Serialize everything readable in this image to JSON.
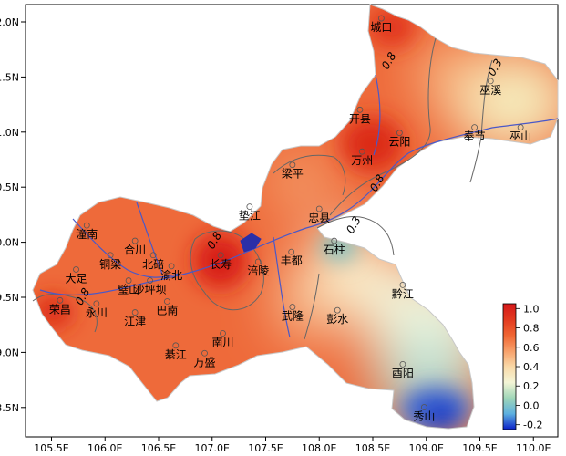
{
  "axes": {
    "x_ticks": [
      "105.5E",
      "106.0E",
      "106.5E",
      "107.0E",
      "107.5E",
      "108.0E",
      "108.5E",
      "109.0E",
      "109.5E",
      "110.0E"
    ],
    "y_ticks": [
      "32.0N",
      "31.5N",
      "31.0N",
      "30.5N",
      "30.0N",
      "29.5N",
      "29.0N",
      "28.5N"
    ]
  },
  "colorbar": {
    "ticks": [
      "1.0",
      "0.8",
      "0.6",
      "0.4",
      "0.2",
      "0.0",
      "-0.2"
    ],
    "range": [
      -0.25,
      1.05
    ],
    "colors": [
      "#0a1fc8",
      "#5db0e0",
      "#9fd6b8",
      "#f4f5d6",
      "#f9d9a8",
      "#f7a06a",
      "#f06532",
      "#e23a1f",
      "#d4181a"
    ]
  },
  "contour_labels": [
    {
      "text": "0.8",
      "lon": 108.68,
      "lat": 31.63
    },
    {
      "text": "0.3",
      "lon": 109.67,
      "lat": 31.57
    },
    {
      "text": "0.8",
      "lon": 108.57,
      "lat": 30.52
    },
    {
      "text": "0.3",
      "lon": 108.35,
      "lat": 30.14
    },
    {
      "text": "0.8",
      "lon": 107.05,
      "lat": 30.0
    },
    {
      "text": "0.8",
      "lon": 105.82,
      "lat": 29.49
    }
  ],
  "counties": [
    {
      "name": "城口",
      "lon": 108.58,
      "lat": 31.95
    },
    {
      "name": "巫溪",
      "lon": 109.6,
      "lat": 31.38
    },
    {
      "name": "开县",
      "lon": 108.38,
      "lat": 31.12
    },
    {
      "name": "云阳",
      "lon": 108.75,
      "lat": 30.91
    },
    {
      "name": "奉节",
      "lon": 109.45,
      "lat": 30.96
    },
    {
      "name": "巫山",
      "lon": 109.88,
      "lat": 30.96
    },
    {
      "name": "梁平",
      "lon": 107.75,
      "lat": 30.62
    },
    {
      "name": "万州",
      "lon": 108.4,
      "lat": 30.74
    },
    {
      "name": "垫江",
      "lon": 107.35,
      "lat": 30.24
    },
    {
      "name": "忠县",
      "lon": 108.0,
      "lat": 30.22
    },
    {
      "name": "潼南",
      "lon": 105.83,
      "lat": 30.07
    },
    {
      "name": "合川",
      "lon": 106.28,
      "lat": 29.93
    },
    {
      "name": "铜梁",
      "lon": 106.05,
      "lat": 29.8
    },
    {
      "name": "北碚",
      "lon": 106.45,
      "lat": 29.8
    },
    {
      "name": "长寿",
      "lon": 107.08,
      "lat": 29.8
    },
    {
      "name": "丰都",
      "lon": 107.74,
      "lat": 29.83
    },
    {
      "name": "石柱",
      "lon": 108.14,
      "lat": 29.93
    },
    {
      "name": "大足",
      "lon": 105.73,
      "lat": 29.67
    },
    {
      "name": "渝北",
      "lon": 106.62,
      "lat": 29.7
    },
    {
      "name": "涪陵",
      "lon": 107.43,
      "lat": 29.74
    },
    {
      "name": "璧山",
      "lon": 106.22,
      "lat": 29.57
    },
    {
      "name": "沙坪坝",
      "lon": 106.42,
      "lat": 29.57
    },
    {
      "name": "荣昌",
      "lon": 105.58,
      "lat": 29.39
    },
    {
      "name": "永川",
      "lon": 105.92,
      "lat": 29.36
    },
    {
      "name": "巴南",
      "lon": 106.58,
      "lat": 29.38
    },
    {
      "name": "江津",
      "lon": 106.28,
      "lat": 29.28
    },
    {
      "name": "武隆",
      "lon": 107.75,
      "lat": 29.33
    },
    {
      "name": "彭水",
      "lon": 108.17,
      "lat": 29.3
    },
    {
      "name": "黔江",
      "lon": 108.78,
      "lat": 29.53
    },
    {
      "name": "南川",
      "lon": 107.1,
      "lat": 29.09
    },
    {
      "name": "綦江",
      "lon": 106.66,
      "lat": 28.98
    },
    {
      "name": "万盛",
      "lon": 106.93,
      "lat": 28.91
    },
    {
      "name": "酉阳",
      "lon": 108.78,
      "lat": 28.81
    },
    {
      "name": "秀山",
      "lon": 108.98,
      "lat": 28.42
    }
  ]
}
